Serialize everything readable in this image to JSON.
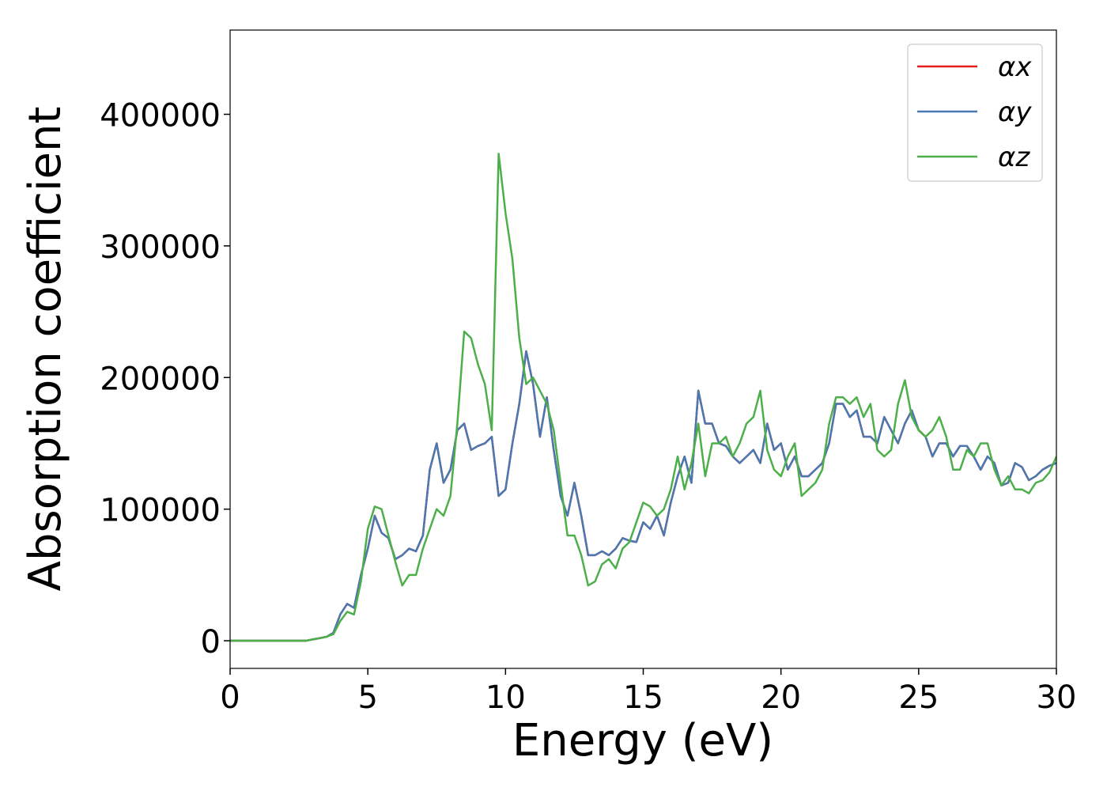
{
  "chart_data": {
    "type": "line",
    "xlabel": "Energy (eV)",
    "ylabel": "Absorption coefficient",
    "x": [
      0,
      0.25,
      0.5,
      0.75,
      1,
      1.25,
      1.5,
      1.75,
      2,
      2.25,
      2.5,
      2.75,
      3,
      3.25,
      3.5,
      3.75,
      4,
      4.25,
      4.5,
      4.75,
      5,
      5.25,
      5.5,
      5.75,
      6,
      6.25,
      6.5,
      6.75,
      7,
      7.25,
      7.5,
      7.75,
      8,
      8.25,
      8.5,
      8.75,
      9,
      9.25,
      9.5,
      9.75,
      10,
      10.25,
      10.5,
      10.75,
      11,
      11.25,
      11.5,
      11.75,
      12,
      12.25,
      12.5,
      12.75,
      13,
      13.25,
      13.5,
      13.75,
      14,
      14.25,
      14.5,
      14.75,
      15,
      15.25,
      15.5,
      15.75,
      16,
      16.25,
      16.5,
      16.75,
      17,
      17.25,
      17.5,
      17.75,
      18,
      18.25,
      18.5,
      18.75,
      19,
      19.25,
      19.5,
      19.75,
      20,
      20.25,
      20.5,
      20.75,
      21,
      21.25,
      21.5,
      21.75,
      22,
      22.25,
      22.5,
      22.75,
      23,
      23.25,
      23.5,
      23.75,
      24,
      24.25,
      24.5,
      24.75,
      25,
      25.25,
      25.5,
      25.75,
      26,
      26.25,
      26.5,
      26.75,
      27,
      27.25,
      27.5,
      27.75,
      28,
      28.25,
      28.5,
      28.75,
      29,
      29.25,
      29.5,
      29.75,
      30
    ],
    "series": [
      {
        "name": "αx",
        "color": "#e41a1c",
        "values": [
          0,
          0,
          0,
          0,
          0,
          0,
          0,
          0,
          0,
          0,
          0,
          0,
          1000,
          2000,
          3000,
          6000,
          20000,
          28000,
          25000,
          50000,
          70000,
          95000,
          82000,
          78000,
          62000,
          65000,
          70000,
          68000,
          80000,
          130000,
          150000,
          120000,
          130000,
          160000,
          165000,
          145000,
          148000,
          150000,
          155000,
          110000,
          115000,
          150000,
          180000,
          220000,
          195000,
          155000,
          185000,
          145000,
          110000,
          95000,
          120000,
          95000,
          65000,
          65000,
          68000,
          65000,
          70000,
          78000,
          76000,
          75000,
          90000,
          85000,
          95000,
          80000,
          105000,
          125000,
          140000,
          120000,
          190000,
          165000,
          165000,
          150000,
          148000,
          140000,
          135000,
          140000,
          145000,
          135000,
          165000,
          145000,
          150000,
          130000,
          140000,
          125000,
          125000,
          130000,
          135000,
          150000,
          180000,
          180000,
          170000,
          175000,
          155000,
          155000,
          150000,
          170000,
          160000,
          150000,
          165000,
          175000,
          160000,
          155000,
          140000,
          150000,
          150000,
          140000,
          148000,
          148000,
          140000,
          130000,
          140000,
          135000,
          118000,
          120000,
          135000,
          132000,
          122000,
          125000,
          130000,
          133000,
          135000
        ]
      },
      {
        "name": "αy",
        "color": "#4a78b0",
        "values": [
          0,
          0,
          0,
          0,
          0,
          0,
          0,
          0,
          0,
          0,
          0,
          0,
          1000,
          2000,
          3000,
          6000,
          20000,
          28000,
          25000,
          50000,
          70000,
          95000,
          82000,
          78000,
          62000,
          65000,
          70000,
          68000,
          80000,
          130000,
          150000,
          120000,
          130000,
          160000,
          165000,
          145000,
          148000,
          150000,
          155000,
          110000,
          115000,
          150000,
          180000,
          220000,
          195000,
          155000,
          185000,
          145000,
          110000,
          95000,
          120000,
          95000,
          65000,
          65000,
          68000,
          65000,
          70000,
          78000,
          76000,
          75000,
          90000,
          85000,
          95000,
          80000,
          105000,
          125000,
          140000,
          120000,
          190000,
          165000,
          165000,
          150000,
          148000,
          140000,
          135000,
          140000,
          145000,
          135000,
          165000,
          145000,
          150000,
          130000,
          140000,
          125000,
          125000,
          130000,
          135000,
          150000,
          180000,
          180000,
          170000,
          175000,
          155000,
          155000,
          150000,
          170000,
          160000,
          150000,
          165000,
          175000,
          160000,
          155000,
          140000,
          150000,
          150000,
          140000,
          148000,
          148000,
          140000,
          130000,
          140000,
          135000,
          118000,
          120000,
          135000,
          132000,
          122000,
          125000,
          130000,
          133000,
          135000
        ]
      },
      {
        "name": "αz",
        "color": "#4daf4a",
        "values": [
          0,
          0,
          0,
          0,
          0,
          0,
          0,
          0,
          0,
          0,
          0,
          0,
          1000,
          2000,
          3000,
          5000,
          15000,
          22000,
          20000,
          45000,
          85000,
          102000,
          100000,
          80000,
          60000,
          42000,
          50000,
          50000,
          70000,
          85000,
          100000,
          95000,
          110000,
          165000,
          235000,
          230000,
          210000,
          195000,
          160000,
          370000,
          325000,
          290000,
          230000,
          195000,
          200000,
          190000,
          180000,
          160000,
          120000,
          80000,
          80000,
          65000,
          42000,
          45000,
          58000,
          62000,
          55000,
          70000,
          75000,
          90000,
          105000,
          102000,
          95000,
          100000,
          115000,
          140000,
          115000,
          135000,
          165000,
          125000,
          150000,
          150000,
          155000,
          140000,
          150000,
          165000,
          170000,
          190000,
          145000,
          130000,
          125000,
          140000,
          150000,
          110000,
          115000,
          120000,
          130000,
          165000,
          185000,
          185000,
          180000,
          185000,
          170000,
          180000,
          145000,
          140000,
          145000,
          180000,
          198000,
          170000,
          160000,
          155000,
          160000,
          170000,
          155000,
          130000,
          130000,
          145000,
          140000,
          150000,
          150000,
          130000,
          118000,
          125000,
          115000,
          115000,
          112000,
          120000,
          122000,
          128000,
          140000
        ]
      }
    ],
    "xlim": [
      0,
      30
    ],
    "xticks": [
      0,
      5,
      10,
      15,
      20,
      25,
      30
    ],
    "ylim": [
      -21000,
      464000
    ],
    "yticks": [
      0,
      100000,
      200000,
      300000,
      400000
    ],
    "grid": false,
    "legend": "upper right"
  }
}
